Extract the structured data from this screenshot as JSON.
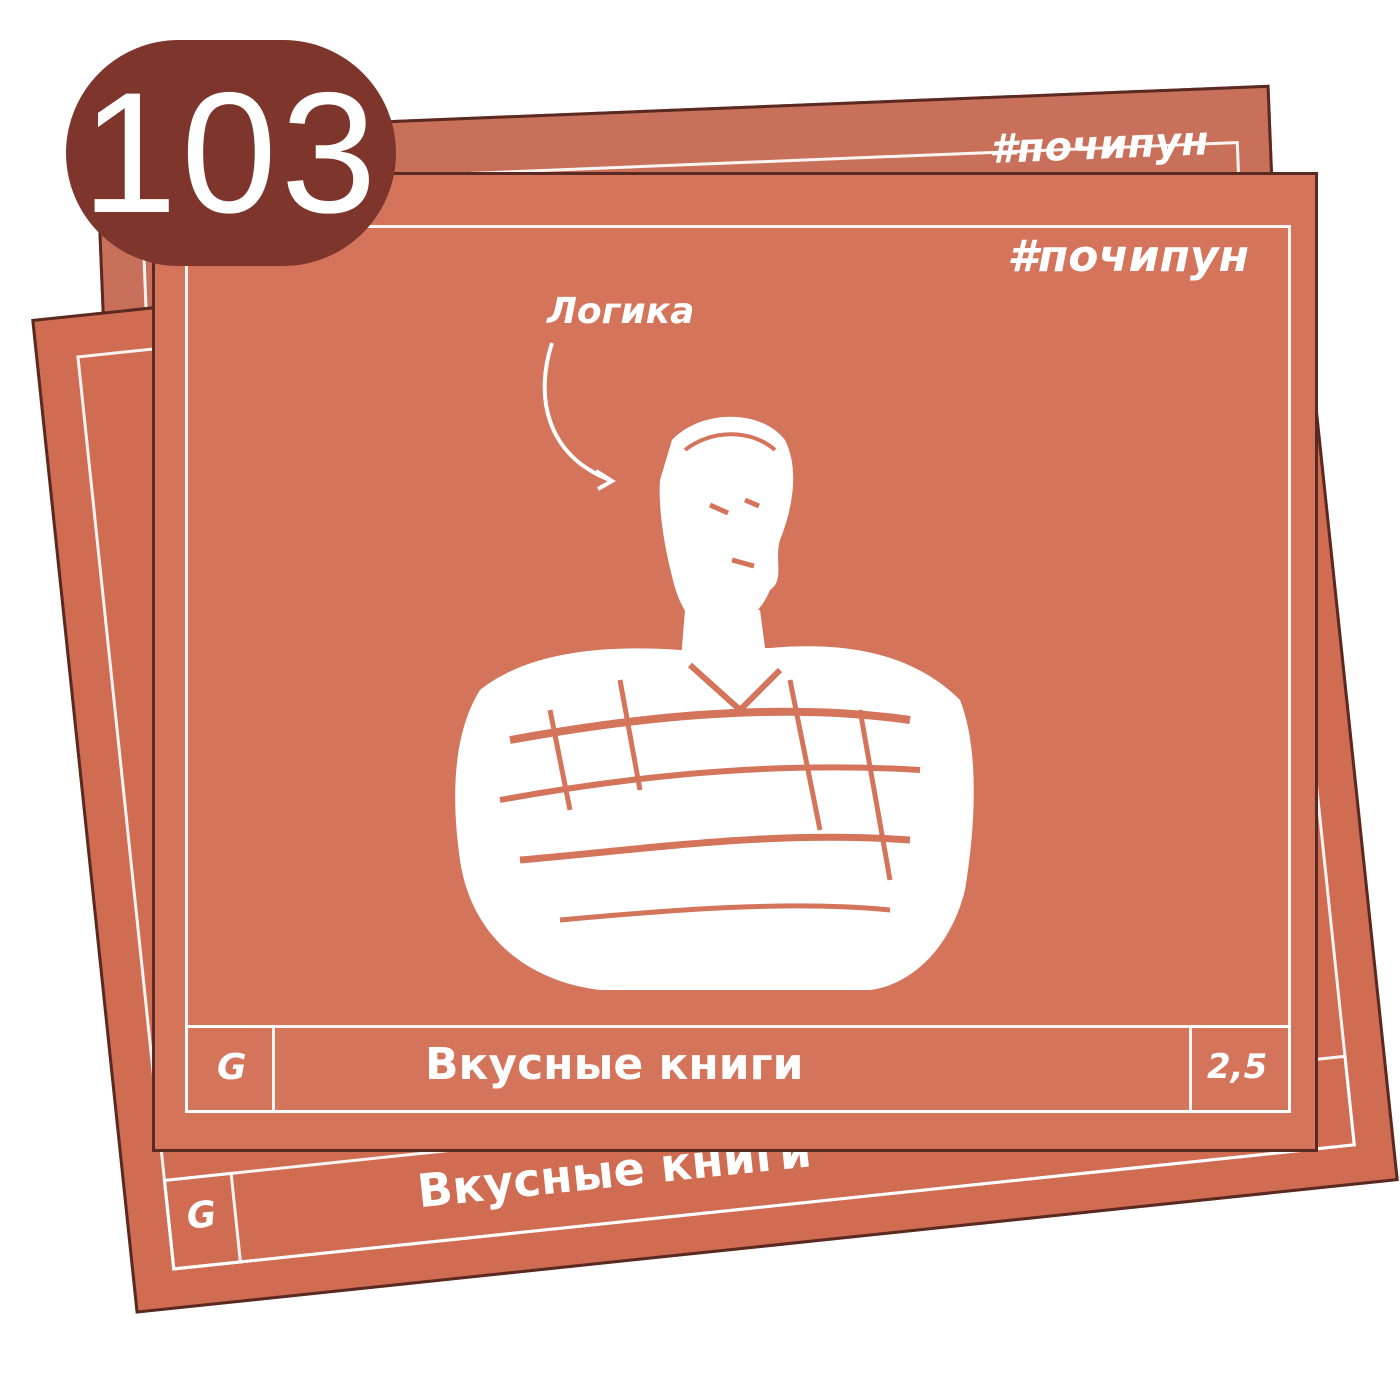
{
  "badge": {
    "number": "103"
  },
  "card": {
    "hashtag": "#почипун",
    "label": "Логика",
    "title": "Вкусные книги",
    "letter": "G",
    "price": "2,5"
  },
  "colors": {
    "card_front": "#d4745b",
    "card_middle": "#cf6c52",
    "card_back": "#c8705a",
    "badge": "#7e362c",
    "border": "#5a2a22",
    "chalk": "#ffffff"
  }
}
